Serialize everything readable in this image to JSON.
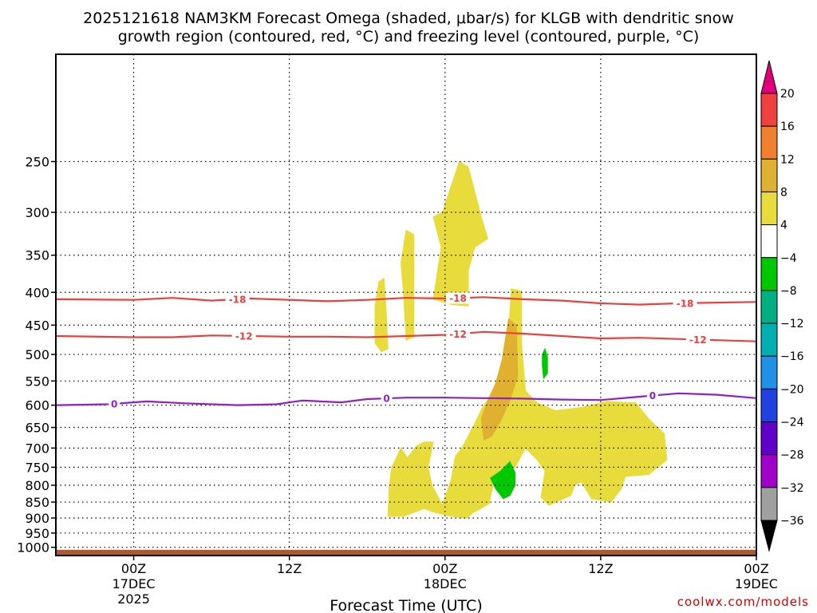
{
  "chart_data": {
    "type": "heatmap",
    "title_line1": "2025121618 NAM3KM Forecast Omega (shaded, μbar/s) for KLGB with dendritic snow",
    "title_line2": "growth region (contoured, red, °C) and freezing level (contoured, purple, °C)",
    "xlabel": "Forecast Time (UTC)",
    "x_unit": "hours since 2025-12-16 18Z",
    "xlim": [
      0,
      54
    ],
    "y_unit": "hPa",
    "ylim": [
      1030,
      170
    ],
    "y_ticks": [
      250,
      300,
      350,
      400,
      450,
      500,
      550,
      600,
      650,
      700,
      750,
      800,
      850,
      900,
      950,
      1000
    ],
    "x_ticks": [
      {
        "hour": 6,
        "label": "00Z",
        "sub1": "17DEC",
        "sub2": "2025"
      },
      {
        "hour": 18,
        "label": "12Z",
        "sub1": "",
        "sub2": ""
      },
      {
        "hour": 30,
        "label": "00Z",
        "sub1": "18DEC",
        "sub2": ""
      },
      {
        "hour": 42,
        "label": "12Z",
        "sub1": "",
        "sub2": ""
      },
      {
        "hour": 54,
        "label": "00Z",
        "sub1": "19DEC",
        "sub2": ""
      }
    ],
    "colorbar": {
      "levels": [
        "20",
        "16",
        "12",
        "8",
        "4",
        "−4",
        "−8",
        "−12",
        "−16",
        "−20",
        "−24",
        "−28",
        "−32",
        "−36"
      ],
      "colors_top_to_bottom": [
        "#e0007a",
        "#f04040",
        "#f08030",
        "#e0b030",
        "#e8dc3c",
        "#ffffff",
        "#00c800",
        "#00b080",
        "#00b0b0",
        "#2090e8",
        "#2040e0",
        "#6000c8",
        "#a000c8",
        "#a0a0a0",
        "#000000"
      ]
    },
    "contours": [
      {
        "name": "-18C isotherm",
        "color": "#e84040",
        "label": "-18",
        "points": [
          [
            0,
            410
          ],
          [
            6,
            411
          ],
          [
            9,
            408
          ],
          [
            12,
            412
          ],
          [
            15,
            409
          ],
          [
            18,
            411
          ],
          [
            21,
            413
          ],
          [
            24,
            411
          ],
          [
            27,
            408
          ],
          [
            30,
            409
          ],
          [
            33,
            407
          ],
          [
            36,
            410
          ],
          [
            39,
            412
          ],
          [
            42,
            416
          ],
          [
            45,
            418
          ],
          [
            48,
            416
          ],
          [
            51,
            415
          ],
          [
            54,
            414
          ]
        ],
        "label_hours": [
          14,
          31,
          48.5
        ]
      },
      {
        "name": "-12C isotherm",
        "color": "#e84040",
        "label": "-12",
        "points": [
          [
            0,
            468
          ],
          [
            6,
            470
          ],
          [
            9,
            470
          ],
          [
            12,
            467
          ],
          [
            15,
            468
          ],
          [
            18,
            469
          ],
          [
            21,
            469
          ],
          [
            24,
            470
          ],
          [
            27,
            468
          ],
          [
            30,
            466
          ],
          [
            33,
            461
          ],
          [
            36,
            464
          ],
          [
            39,
            468
          ],
          [
            42,
            472
          ],
          [
            45,
            471
          ],
          [
            48,
            473
          ],
          [
            51,
            475
          ],
          [
            54,
            477
          ]
        ],
        "label_hours": [
          14.5,
          31,
          49.5
        ]
      },
      {
        "name": "0C freezing level",
        "color": "#9020c0",
        "label": "0",
        "points": [
          [
            0,
            600
          ],
          [
            4,
            598
          ],
          [
            7,
            592
          ],
          [
            10,
            596
          ],
          [
            14,
            600
          ],
          [
            17,
            598
          ],
          [
            19,
            590
          ],
          [
            22,
            594
          ],
          [
            24,
            587
          ],
          [
            27,
            584
          ],
          [
            30,
            584
          ],
          [
            33,
            585
          ],
          [
            36,
            586
          ],
          [
            39,
            588
          ],
          [
            42,
            589
          ],
          [
            45,
            582
          ],
          [
            48,
            575
          ],
          [
            51,
            578
          ],
          [
            54,
            585
          ]
        ],
        "label_hours": [
          4.5,
          25.5,
          46
        ]
      }
    ],
    "omega_regions": [
      {
        "value": "4 to 8",
        "color": "#e8dc3c",
        "polygon": [
          [
            29.8,
            300
          ],
          [
            31.1,
            250
          ],
          [
            31.8,
            255
          ],
          [
            32.8,
            305
          ],
          [
            33.3,
            330
          ],
          [
            32.3,
            340
          ],
          [
            31.8,
            370
          ],
          [
            31.8,
            420
          ],
          [
            30.5,
            418
          ],
          [
            29.1,
            410
          ],
          [
            29.7,
            340
          ],
          [
            29.1,
            305
          ]
        ]
      },
      {
        "value": "4 to 8",
        "color": "#e8dc3c",
        "polygon": [
          [
            27.0,
            320
          ],
          [
            27.6,
            325
          ],
          [
            27.6,
            470
          ],
          [
            27.0,
            475
          ],
          [
            26.8,
            400
          ],
          [
            26.6,
            360
          ]
        ]
      },
      {
        "value": "4 to 8",
        "color": "#e8dc3c",
        "polygon": [
          [
            24.9,
            385
          ],
          [
            25.3,
            380
          ],
          [
            25.5,
            440
          ],
          [
            25.6,
            490
          ],
          [
            25.1,
            495
          ],
          [
            24.6,
            480
          ],
          [
            24.6,
            420
          ]
        ]
      },
      {
        "value": "4 to 8",
        "color": "#e8dc3c",
        "polygon": [
          [
            35.1,
            395
          ],
          [
            35.9,
            398
          ],
          [
            35.9,
            480
          ],
          [
            36.2,
            570
          ],
          [
            37.1,
            595
          ],
          [
            38.5,
            612
          ],
          [
            40.5,
            605
          ],
          [
            42.5,
            592
          ],
          [
            44.7,
            595
          ],
          [
            45.7,
            630
          ],
          [
            46.9,
            665
          ],
          [
            47.1,
            730
          ],
          [
            45.7,
            770
          ],
          [
            43.9,
            775
          ],
          [
            43.6,
            810
          ],
          [
            42.8,
            850
          ],
          [
            41.3,
            840
          ],
          [
            40.5,
            790
          ],
          [
            40.0,
            800
          ],
          [
            39.7,
            830
          ],
          [
            38.0,
            860
          ],
          [
            37.4,
            835
          ],
          [
            37.7,
            760
          ],
          [
            37.1,
            730
          ],
          [
            36.2,
            700
          ],
          [
            35.4,
            750
          ],
          [
            34.5,
            770
          ],
          [
            33.7,
            800
          ],
          [
            33.4,
            855
          ],
          [
            32.1,
            885
          ],
          [
            31.7,
            900
          ],
          [
            30.8,
            897
          ],
          [
            30.0,
            890
          ],
          [
            29.0,
            880
          ],
          [
            28.4,
            870
          ],
          [
            26.8,
            895
          ],
          [
            25.6,
            895
          ],
          [
            25.7,
            800
          ],
          [
            25.9,
            750
          ],
          [
            26.6,
            700
          ],
          [
            27.1,
            725
          ],
          [
            27.8,
            695
          ],
          [
            28.4,
            685
          ],
          [
            29.1,
            685
          ],
          [
            28.7,
            750
          ],
          [
            29.0,
            800
          ],
          [
            29.8,
            860
          ],
          [
            30.5,
            780
          ],
          [
            30.8,
            720
          ],
          [
            31.3,
            700
          ],
          [
            32.3,
            640
          ],
          [
            32.8,
            610
          ],
          [
            33.5,
            580
          ],
          [
            34.0,
            555
          ],
          [
            34.5,
            510
          ],
          [
            34.9,
            465
          ]
        ]
      },
      {
        "value": "8 to 12",
        "color": "#e0b030",
        "polygon": [
          [
            34.9,
            440
          ],
          [
            35.5,
            450
          ],
          [
            35.6,
            540
          ],
          [
            35.0,
            590
          ],
          [
            34.2,
            640
          ],
          [
            33.6,
            670
          ],
          [
            33.0,
            680
          ],
          [
            32.8,
            630
          ],
          [
            33.3,
            590
          ],
          [
            33.9,
            555
          ],
          [
            34.4,
            510
          ]
        ]
      },
      {
        "value": "-4 to -8",
        "color": "#00c800",
        "polygon": [
          [
            35.0,
            735
          ],
          [
            35.4,
            765
          ],
          [
            35.4,
            800
          ],
          [
            35.0,
            830
          ],
          [
            34.5,
            840
          ],
          [
            33.9,
            810
          ],
          [
            33.5,
            780
          ],
          [
            34.3,
            760
          ]
        ]
      },
      {
        "value": "-4 to -8",
        "color": "#00c800",
        "polygon": [
          [
            37.7,
            490
          ],
          [
            37.9,
            505
          ],
          [
            37.9,
            535
          ],
          [
            37.6,
            545
          ],
          [
            37.5,
            520
          ],
          [
            37.5,
            500
          ]
        ]
      }
    ],
    "ground": {
      "from_hpa": 1030,
      "to_hpa": 1009,
      "color": "#b0582a"
    }
  },
  "credit": "coolwx.com/models"
}
